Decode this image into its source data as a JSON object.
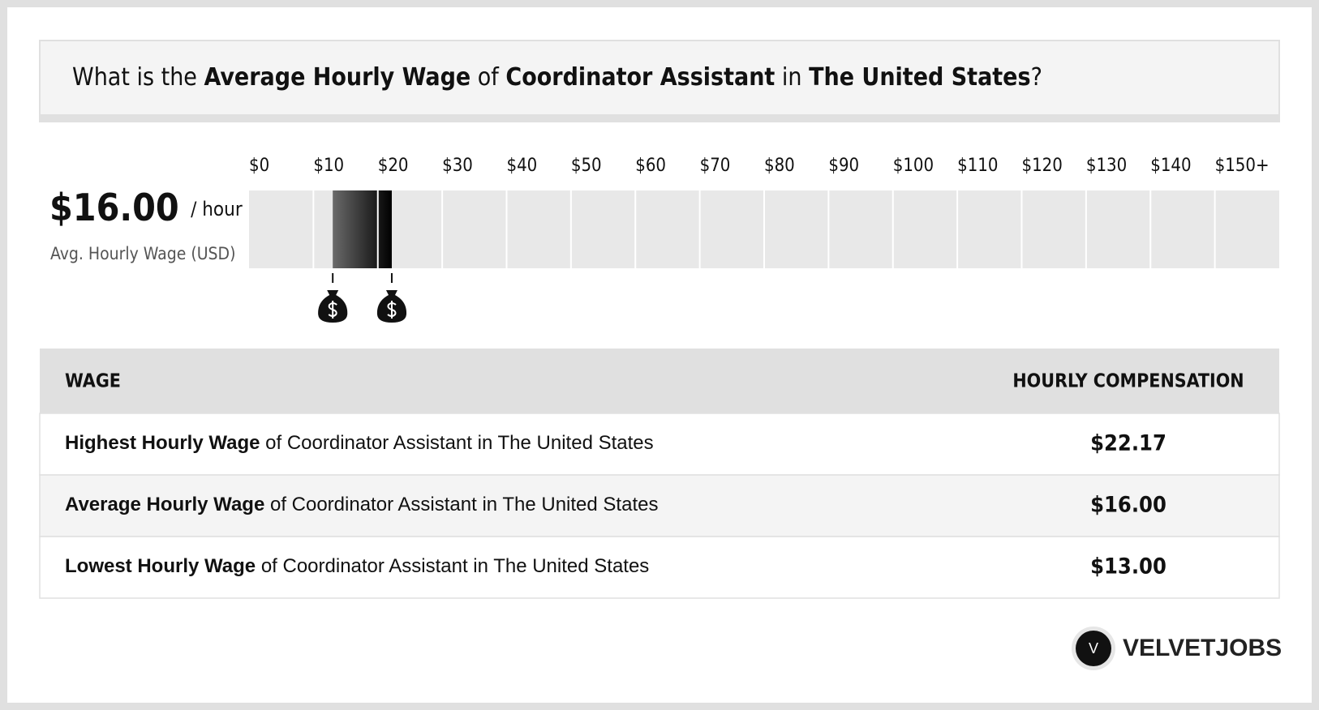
{
  "header": {
    "prefix": "What is the",
    "metric": "Average Hourly Wage",
    "of": "of",
    "job": "Coordinator Assistant",
    "in": "in",
    "location": "The United States",
    "end": "?"
  },
  "summary": {
    "value": "$16.00",
    "unit": "/ hour",
    "label": "Avg. Hourly Wage (USD)"
  },
  "scale": {
    "xlim": [
      0,
      160
    ],
    "xticks": [
      {
        "value": 0,
        "label": "$0"
      },
      {
        "value": 10,
        "label": "$10"
      },
      {
        "value": 20,
        "label": "$20"
      },
      {
        "value": 30,
        "label": "$30"
      },
      {
        "value": 40,
        "label": "$40"
      },
      {
        "value": 50,
        "label": "$50"
      },
      {
        "value": 60,
        "label": "$60"
      },
      {
        "value": 70,
        "label": "$70"
      },
      {
        "value": 80,
        "label": "$80"
      },
      {
        "value": 90,
        "label": "$90"
      },
      {
        "value": 100,
        "label": "$100"
      },
      {
        "value": 110,
        "label": "$110"
      },
      {
        "value": 120,
        "label": "$120"
      },
      {
        "value": 130,
        "label": "$130"
      },
      {
        "value": 140,
        "label": "$140"
      },
      {
        "value": 150,
        "label": "$150+"
      }
    ],
    "range": {
      "low": 13,
      "high": 22.17
    }
  },
  "table": {
    "headers": [
      "WAGE",
      "HOURLY COMPENSATION"
    ],
    "rows": [
      {
        "label": "Highest Hourly Wage",
        "rest": "of Coordinator Assistant in The United States",
        "value": "$22.17"
      },
      {
        "label": "Average Hourly Wage",
        "rest": "of Coordinator Assistant in The United States",
        "value": "$16.00"
      },
      {
        "label": "Lowest Hourly Wage",
        "rest": "of Coordinator Assistant in The United States",
        "value": "$13.00"
      }
    ]
  },
  "brand": {
    "letter": "V",
    "name": "VELVETJOBS"
  }
}
